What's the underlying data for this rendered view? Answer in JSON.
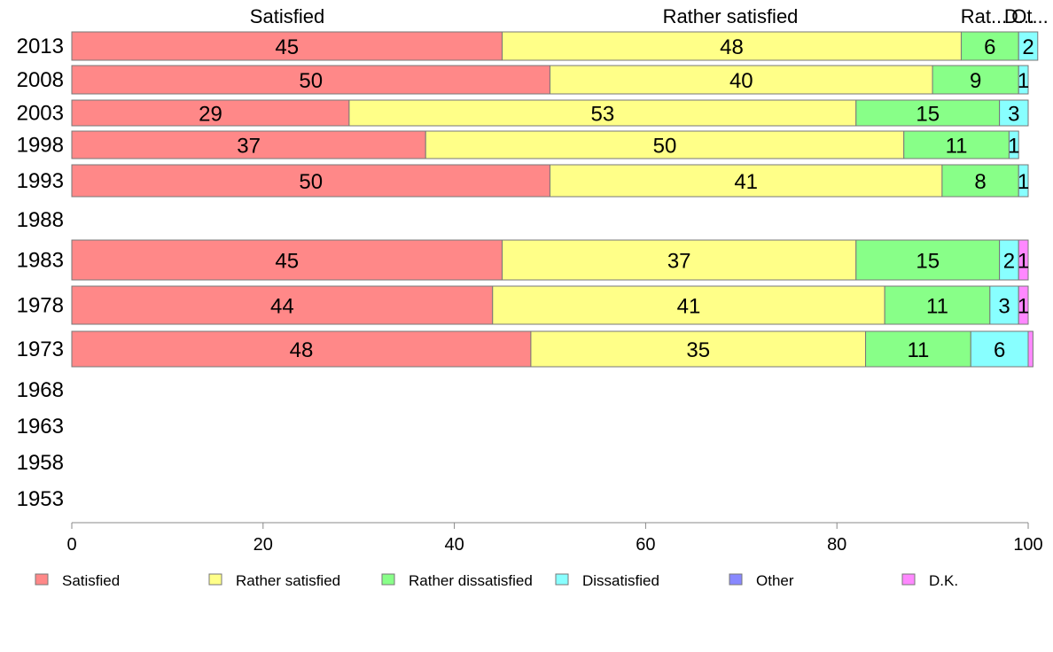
{
  "chart_data": {
    "type": "bar",
    "orientation": "horizontal",
    "stacked": true,
    "categories": [
      "2013",
      "2008",
      "2003",
      "1998",
      "1993",
      "1988",
      "1983",
      "1978",
      "1973",
      "1968",
      "1963",
      "1958",
      "1953"
    ],
    "series": [
      {
        "name": "Satisfied",
        "color": "#ff8888",
        "values": [
          45,
          50,
          29,
          37,
          50,
          null,
          45,
          44,
          48,
          null,
          null,
          null,
          null
        ]
      },
      {
        "name": "Rather satisfied",
        "color": "#ffff88",
        "values": [
          48,
          40,
          53,
          50,
          41,
          null,
          37,
          41,
          35,
          null,
          null,
          null,
          null
        ]
      },
      {
        "name": "Rather dissatisfied",
        "color": "#88ff88",
        "values": [
          6,
          9,
          15,
          11,
          8,
          null,
          15,
          11,
          11,
          null,
          null,
          null,
          null
        ]
      },
      {
        "name": "Dissatisfied",
        "color": "#88ffff",
        "values": [
          2,
          1,
          3,
          1,
          1,
          null,
          2,
          3,
          6,
          null,
          null,
          null,
          null
        ]
      },
      {
        "name": "Other",
        "color": "#8888ff",
        "values": [
          0,
          0,
          0,
          0,
          0,
          null,
          0,
          0,
          0,
          null,
          null,
          null,
          null
        ]
      },
      {
        "name": "D.K.",
        "color": "#ff88ff",
        "values": [
          0,
          0,
          0,
          0,
          0,
          null,
          1,
          1,
          0.5,
          null,
          null,
          null,
          null
        ]
      }
    ],
    "bar_labels": [
      [
        "45",
        "48",
        "6",
        "2",
        "",
        ""
      ],
      [
        "50",
        "40",
        "9",
        "1",
        "",
        ""
      ],
      [
        "29",
        "53",
        "15",
        "3",
        "",
        ""
      ],
      [
        "37",
        "50",
        "11",
        "1",
        "",
        ""
      ],
      [
        "50",
        "41",
        "8",
        "1",
        "",
        ""
      ],
      [
        "",
        "",
        "",
        "",
        "",
        ""
      ],
      [
        "45",
        "37",
        "15",
        "2",
        "",
        "1"
      ],
      [
        "44",
        "41",
        "11",
        "3",
        "",
        "1"
      ],
      [
        "48",
        "35",
        "11",
        "6",
        "",
        ""
      ],
      [
        "",
        "",
        "",
        "",
        "",
        ""
      ],
      [
        "",
        "",
        "",
        "",
        "",
        ""
      ],
      [
        "",
        "",
        "",
        "",
        "",
        ""
      ],
      [
        "",
        "",
        "",
        "",
        "",
        ""
      ]
    ],
    "top_labels": [
      "Satisfied",
      "Rather satisfied",
      "Rat...",
      "D...",
      "Ot..."
    ],
    "xlim": [
      0,
      100
    ],
    "xticks": [
      "0",
      "20",
      "40",
      "60",
      "80",
      "100"
    ],
    "grid": false,
    "legend_position": "bottom",
    "title": "",
    "xlabel": "",
    "ylabel": ""
  }
}
